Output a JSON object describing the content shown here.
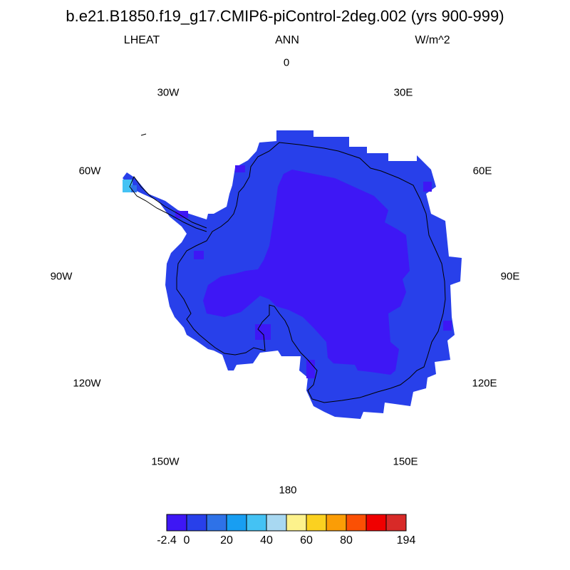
{
  "title": "b.e21.B1850.f19_g17.CMIP6-piControl-2deg.002 (yrs 900-999)",
  "subtitle": {
    "left": "LHEAT",
    "center": "ANN",
    "right": "W/m^2"
  },
  "longitude_labels": [
    "0",
    "30E",
    "60E",
    "90E",
    "120E",
    "150E",
    "180",
    "150W",
    "120W",
    "90W",
    "60W",
    "30W"
  ],
  "colorbar": {
    "colors": [
      "#3e17f5",
      "#2840ea",
      "#2e72e8",
      "#189ef2",
      "#44c2f4",
      "#a8d8f1",
      "#fdf28c",
      "#fbd120",
      "#fb9d06",
      "#fb5004",
      "#f00000",
      "#d82a28"
    ],
    "tick_labels": [
      "-2.4",
      "0",
      "20",
      "40",
      "60",
      "80",
      "194"
    ]
  },
  "map_fill_colors": {
    "interior": "#3e17f5",
    "margin": "#2840ea",
    "peninsula_tip": "#44c2f4"
  }
}
